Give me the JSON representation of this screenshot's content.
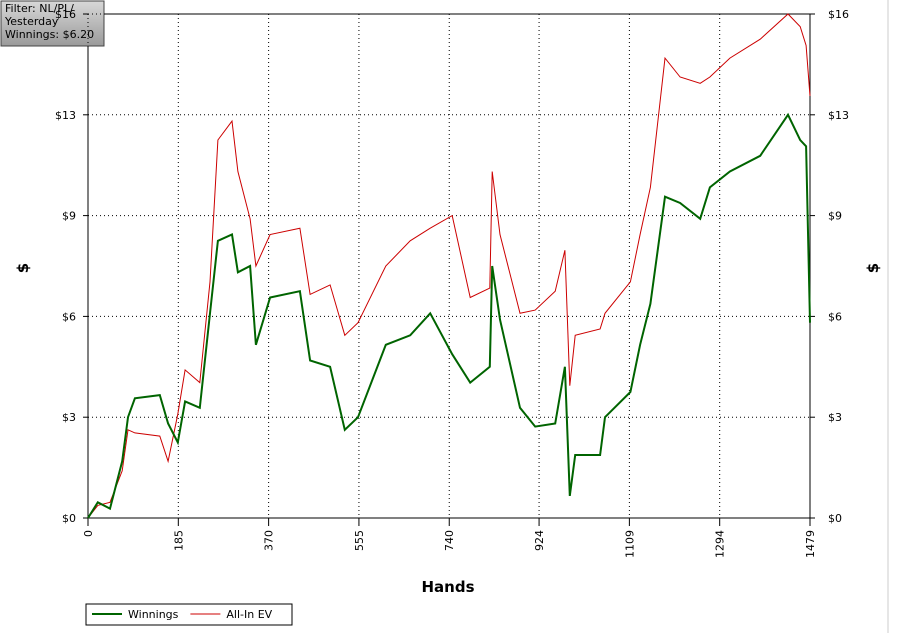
{
  "chart_data": {
    "type": "line",
    "annotations": [
      "Filter: NL/PL/",
      "Yesterday",
      "Winnings: $6.20"
    ],
    "xlabel": "Hands",
    "ylabel": "$",
    "y2label": "$",
    "x": [
      0,
      20,
      45,
      70,
      82,
      96,
      147,
      164,
      184,
      199,
      229,
      250,
      266,
      295,
      307,
      332,
      344,
      373,
      434,
      455,
      496,
      526,
      553,
      610,
      660,
      701,
      746,
      783,
      823,
      828,
      844,
      885,
      916,
      957,
      977,
      987,
      998,
      1049,
      1059,
      1111,
      1131,
      1152,
      1182,
      1213,
      1254,
      1274,
      1315,
      1377,
      1434,
      1459,
      1471,
      1479
    ],
    "series": [
      {
        "name": "Winnings",
        "color": "#006400",
        "values": [
          0,
          0.5,
          0.3,
          1.8,
          3.2,
          3.8,
          3.9,
          3.0,
          2.4,
          3.7,
          3.5,
          6.5,
          8.8,
          9.0,
          7.8,
          8.0,
          5.5,
          7.0,
          7.2,
          5.0,
          4.8,
          2.8,
          3.2,
          5.5,
          5.8,
          6.5,
          5.2,
          4.3,
          4.8,
          8.0,
          6.3,
          3.5,
          2.9,
          3.0,
          4.8,
          0.7,
          2.0,
          2.0,
          3.2,
          4.0,
          5.5,
          6.8,
          10.2,
          10.0,
          9.5,
          10.5,
          11.0,
          11.5,
          12.8,
          12.0,
          11.8,
          6.2
        ]
      },
      {
        "name": "All-In EV",
        "color": "#cc0000",
        "values": [
          0,
          0.4,
          0.5,
          1.5,
          2.8,
          2.7,
          2.6,
          1.8,
          3.3,
          4.7,
          4.3,
          7.5,
          12.0,
          12.6,
          11.0,
          9.5,
          8.0,
          9.0,
          9.2,
          7.1,
          7.4,
          5.8,
          6.2,
          8.0,
          8.8,
          9.2,
          9.6,
          7.0,
          7.3,
          11.0,
          9.0,
          6.5,
          6.6,
          7.2,
          8.5,
          4.2,
          5.8,
          6.0,
          6.5,
          7.5,
          9.0,
          10.5,
          14.6,
          14.0,
          13.8,
          14.0,
          14.6,
          15.2,
          16.0,
          15.6,
          15.0,
          13.4
        ]
      }
    ],
    "xlim": [
      0,
      1479
    ],
    "xticks": [
      0,
      185,
      370,
      555,
      740,
      924,
      1109,
      1294,
      1479
    ],
    "ylim": [
      0,
      16
    ],
    "yticks": [
      {
        "value": 0,
        "label": "$0"
      },
      {
        "value": 3.2,
        "label": "$3"
      },
      {
        "value": 6.4,
        "label": "$6"
      },
      {
        "value": 9.6,
        "label": "$9"
      },
      {
        "value": 12.8,
        "label": "$13"
      },
      {
        "value": 16,
        "label": "$16"
      }
    ],
    "y2lim": [
      0,
      16
    ],
    "y2ticks": [
      {
        "value": 0,
        "label": "$0"
      },
      {
        "value": 3.2,
        "label": "$3"
      },
      {
        "value": 6.4,
        "label": "$6"
      },
      {
        "value": 9.6,
        "label": "$9"
      },
      {
        "value": 12.8,
        "label": "$13"
      },
      {
        "value": 16,
        "label": "$16"
      }
    ],
    "grid": true,
    "legend": "bottom-left"
  }
}
